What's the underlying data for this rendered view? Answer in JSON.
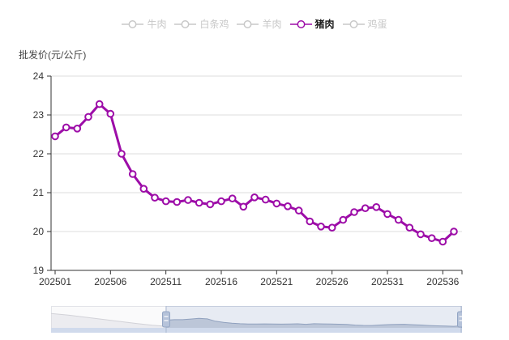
{
  "legend": {
    "items": [
      {
        "label": "牛肉",
        "active": false
      },
      {
        "label": "白条鸡",
        "active": false
      },
      {
        "label": "羊肉",
        "active": false
      },
      {
        "label": "猪肉",
        "active": true
      },
      {
        "label": "鸡蛋",
        "active": false
      }
    ]
  },
  "chart_data": {
    "type": "line",
    "y_axis_title": "批发价(元/公斤)",
    "categories": [
      "202501",
      "202502",
      "202503",
      "202504",
      "202505",
      "202506",
      "202507",
      "202508",
      "202509",
      "202510",
      "202511",
      "202512",
      "202513",
      "202514",
      "202515",
      "202516",
      "202517",
      "202518",
      "202519",
      "202520",
      "202521",
      "202522",
      "202523",
      "202524",
      "202525",
      "202526",
      "202527",
      "202528",
      "202529",
      "202530",
      "202531",
      "202532",
      "202533",
      "202534",
      "202535",
      "202536",
      "202537"
    ],
    "x_tick_indices": [
      0,
      5,
      10,
      15,
      20,
      25,
      30,
      35
    ],
    "x_tick_labels": [
      "202501",
      "202506",
      "202511",
      "202516",
      "202521",
      "202526",
      "202531",
      "202536"
    ],
    "series": [
      {
        "name": "猪肉",
        "values": [
          22.45,
          22.68,
          22.65,
          22.95,
          23.28,
          23.03,
          22.0,
          21.48,
          21.1,
          20.87,
          20.78,
          20.76,
          20.81,
          20.74,
          20.7,
          20.78,
          20.85,
          20.64,
          20.88,
          20.82,
          20.72,
          20.65,
          20.54,
          20.26,
          20.13,
          20.1,
          20.3,
          20.5,
          20.6,
          20.63,
          20.45,
          20.3,
          20.1,
          19.93,
          19.83,
          19.74,
          20.0
        ]
      }
    ],
    "ylim": [
      19,
      24
    ],
    "y_ticks": [
      19,
      20,
      21,
      22,
      23,
      24
    ],
    "grid": true,
    "legend_position": "top",
    "marker": "hollow-circle"
  },
  "slider": {
    "selected_start_pct": 28,
    "selected_end_pct": 100,
    "left_preview": [
      [
        0,
        0.28
      ],
      [
        0.15,
        0.34
      ],
      [
        0.3,
        0.42
      ],
      [
        0.45,
        0.5
      ],
      [
        0.6,
        0.58
      ],
      [
        0.75,
        0.66
      ],
      [
        0.88,
        0.72
      ],
      [
        1,
        0.76
      ]
    ]
  },
  "colors": {
    "accent": "#9D0DA8",
    "legend_inactive": "#c8c8c8",
    "axis": "#333333",
    "grid": "#dddddd",
    "slider_selected_bg": "rgba(176,190,215,0.30)",
    "slider_selected_area": "rgba(135,152,184,0.45)",
    "slider_left_bg": "#fafafb",
    "slider_left_area": "#ececf0",
    "slider_move_bar": "#d0daec",
    "slider_handle_fill": "#b6c3da",
    "slider_handle_stroke": "#93a5c4"
  }
}
